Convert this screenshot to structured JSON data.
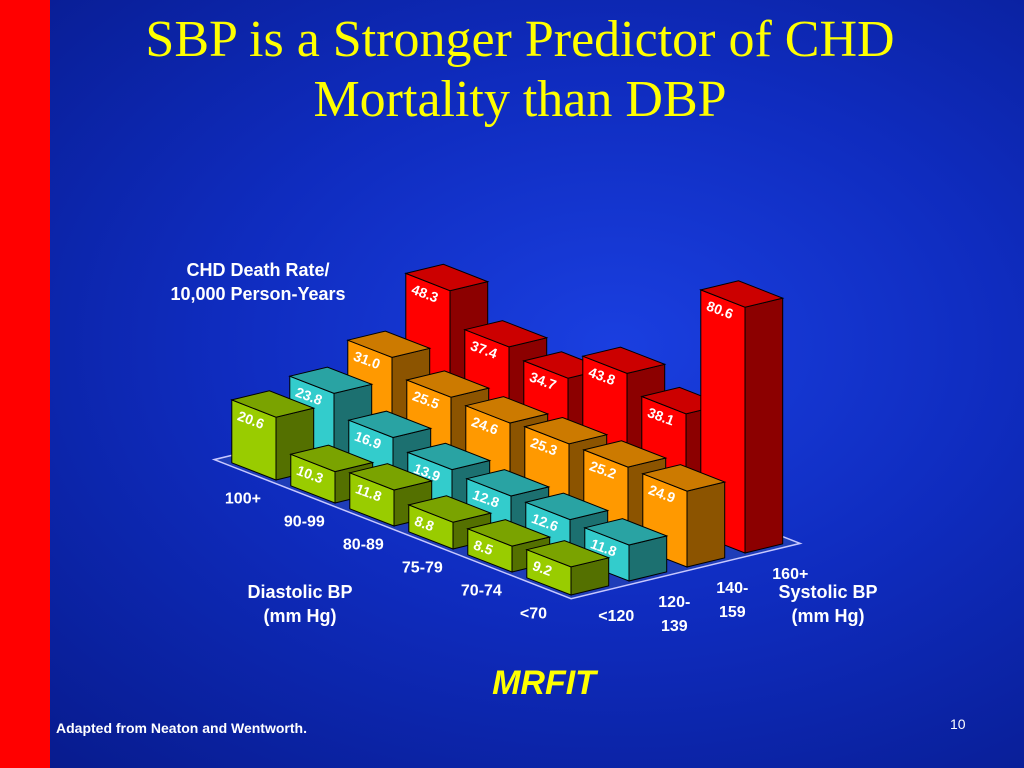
{
  "slide": {
    "title": "SBP is a Stronger Predictor of CHD Mortality than DBP",
    "study": "MRFIT",
    "source": "Adapted from Neaton and Wentworth.",
    "page_number": "10"
  },
  "chart_data": {
    "type": "bar",
    "style": "3d",
    "ylabel_lines": [
      "CHD Death Rate/",
      "10,000 Person-Years"
    ],
    "diastolic_axis": {
      "title_lines": [
        "Diastolic BP",
        "(mm Hg)"
      ],
      "categories": [
        "100+",
        "90-99",
        "80-89",
        "75-79",
        "70-74",
        "<70"
      ]
    },
    "systolic_axis": {
      "title_lines": [
        "Systolic BP",
        "(mm Hg)"
      ],
      "categories": [
        "<120",
        "120-139",
        "140-159",
        "160+"
      ],
      "tick_lines": [
        [
          "<120"
        ],
        [
          "120-",
          "139"
        ],
        [
          "140-",
          "159"
        ],
        [
          "160+"
        ]
      ]
    },
    "series": [
      {
        "name": "<120",
        "color": "#99cc00",
        "values": [
          20.6,
          10.3,
          11.8,
          8.8,
          8.5,
          9.2
        ]
      },
      {
        "name": "120-139",
        "color": "#33cccc",
        "values": [
          23.8,
          16.9,
          13.9,
          12.8,
          12.6,
          11.8
        ]
      },
      {
        "name": "140-159",
        "color": "#ff9900",
        "values": [
          31.0,
          25.5,
          24.6,
          25.3,
          25.2,
          24.9
        ]
      },
      {
        "name": "160+",
        "color": "#ff0000",
        "values": [
          48.3,
          37.4,
          34.7,
          43.8,
          38.1,
          80.6
        ]
      }
    ]
  }
}
